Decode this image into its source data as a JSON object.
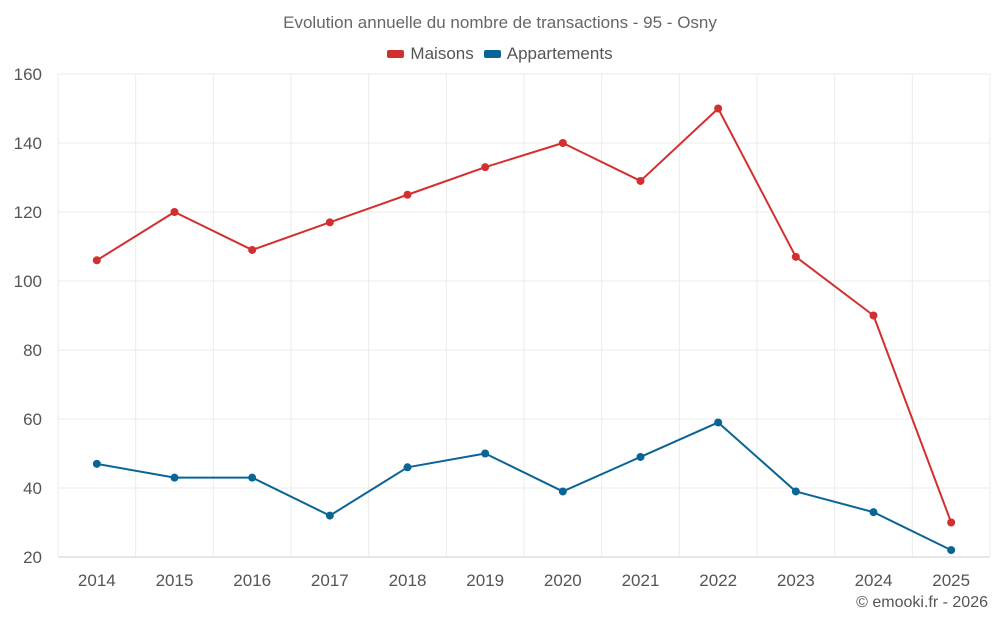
{
  "chart_data": {
    "type": "line",
    "title": "Evolution annuelle du nombre de transactions - 95 - Osny",
    "categories": [
      "2014",
      "2015",
      "2016",
      "2017",
      "2018",
      "2019",
      "2020",
      "2021",
      "2022",
      "2023",
      "2024",
      "2025"
    ],
    "series": [
      {
        "name": "Maisons",
        "color": "#d32f2f",
        "values": [
          106,
          120,
          109,
          117,
          125,
          133,
          140,
          129,
          150,
          107,
          90,
          30
        ]
      },
      {
        "name": "Appartements",
        "color": "#0a6496",
        "values": [
          47,
          43,
          43,
          32,
          46,
          50,
          39,
          49,
          59,
          39,
          33,
          22
        ]
      }
    ],
    "yticks": [
      20,
      40,
      60,
      80,
      100,
      120,
      140,
      160
    ],
    "ylim": [
      20,
      160
    ],
    "xlabel": "",
    "ylabel": "",
    "grid": true,
    "legend_position": "top-center"
  },
  "credit": "© emooki.fr - 2026"
}
